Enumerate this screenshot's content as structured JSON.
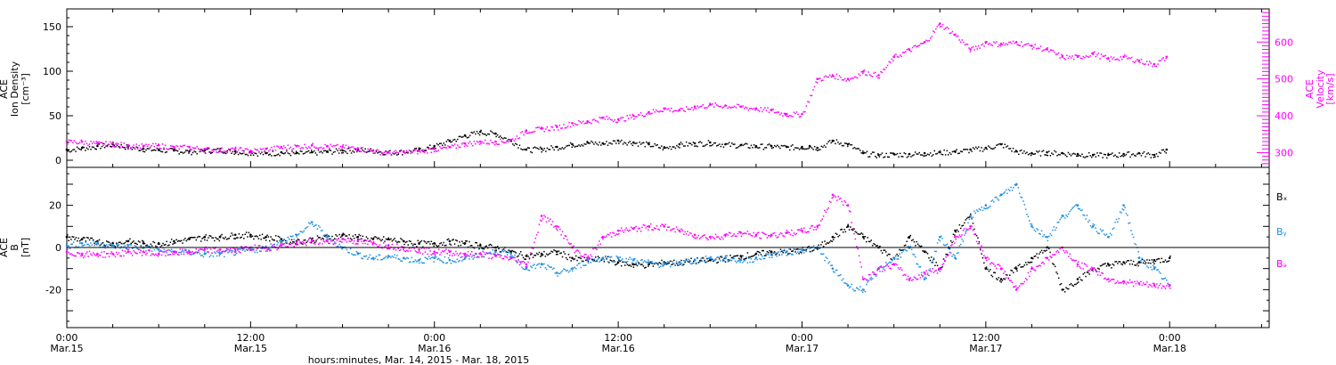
{
  "figure": {
    "xlabel": "hours:minutes, Mar. 14, 2015 - Mar. 18, 2015",
    "x_ticks": [
      {
        "h": 0,
        "time": "0:00",
        "date": "Mar.15"
      },
      {
        "h": 12,
        "time": "12:00",
        "date": "Mar.15"
      },
      {
        "h": 24,
        "time": "0:00",
        "date": "Mar.16"
      },
      {
        "h": 36,
        "time": "12:00",
        "date": "Mar.16"
      },
      {
        "h": 48,
        "time": "0:00",
        "date": "Mar.17"
      },
      {
        "h": 60,
        "time": "12:00",
        "date": "Mar.17"
      },
      {
        "h": 72,
        "time": "0:00",
        "date": "Mar.18"
      }
    ],
    "xlim_hours": [
      0,
      78.5
    ]
  },
  "colors": {
    "density": "#000000",
    "velocity": "#ff00ff",
    "bx": "#000000",
    "by": "#1e90e6",
    "bz": "#ff00ff"
  },
  "chart_data": [
    {
      "type": "scatter",
      "title": "",
      "x_unit": "hours since Mar.15 0:00",
      "left_axis": {
        "label_lines": [
          "ACE",
          "Ion Density",
          "[cm⁻³]"
        ],
        "ylim": [
          -8,
          170
        ],
        "ticks": [
          "0",
          "50",
          "100",
          "150"
        ]
      },
      "right_axis": {
        "label_lines": [
          "ACE",
          "Velocity",
          "[km/s]"
        ],
        "ylim": [
          260,
          690
        ],
        "ticks": [
          "300",
          "400",
          "500",
          "600"
        ]
      },
      "series": [
        {
          "key": "density",
          "axis": "left",
          "x": [
            0,
            1,
            2,
            3,
            4,
            5,
            6,
            7,
            8,
            9,
            10,
            11,
            12,
            13,
            14,
            15,
            16,
            17,
            18,
            19,
            20,
            21,
            22,
            23,
            24,
            25,
            26,
            27,
            28,
            29,
            30,
            31,
            32,
            33,
            34,
            35,
            36,
            37,
            38,
            39,
            40,
            41,
            42,
            43,
            44,
            45,
            46,
            47,
            48,
            48.5,
            49,
            50,
            51,
            52,
            53,
            54,
            55,
            56,
            57,
            58,
            59,
            60,
            61,
            62,
            63,
            64,
            65,
            66,
            67,
            68,
            69,
            70,
            71,
            71.8
          ],
          "values": [
            12,
            14,
            16,
            18,
            15,
            13,
            12,
            11,
            10,
            11,
            12,
            10,
            9,
            8,
            9,
            8,
            9,
            10,
            11,
            12,
            11,
            9,
            10,
            12,
            16,
            22,
            28,
            32,
            30,
            22,
            12,
            13,
            15,
            18,
            20,
            19,
            22,
            20,
            18,
            14,
            18,
            19,
            20,
            18,
            17,
            16,
            16,
            15,
            15,
            16,
            14,
            22,
            18,
            8,
            6,
            7,
            7,
            8,
            9,
            10,
            12,
            14,
            18,
            10,
            8,
            9,
            8,
            7,
            6,
            6,
            7,
            8,
            6,
            12
          ]
        },
        {
          "key": "velocity",
          "axis": "right",
          "x": [
            0,
            1,
            2,
            3,
            4,
            5,
            6,
            7,
            8,
            9,
            10,
            11,
            12,
            13,
            14,
            15,
            16,
            17,
            18,
            19,
            20,
            21,
            22,
            23,
            24,
            25,
            26,
            27,
            28,
            29,
            30,
            31,
            32,
            33,
            34,
            35,
            36,
            37,
            38,
            39,
            40,
            41,
            42,
            43,
            44,
            45,
            46,
            46.9,
            47,
            48,
            49,
            50,
            51,
            52,
            53,
            54,
            55,
            56,
            57,
            58,
            59,
            60,
            61,
            62,
            63,
            64,
            65,
            66,
            67,
            68,
            69,
            70,
            71,
            71.8
          ],
          "values": [
            330,
            330,
            325,
            325,
            320,
            318,
            320,
            315,
            315,
            310,
            308,
            310,
            305,
            310,
            315,
            318,
            320,
            318,
            316,
            312,
            305,
            300,
            302,
            305,
            310,
            315,
            325,
            330,
            330,
            335,
            360,
            365,
            370,
            380,
            385,
            395,
            390,
            400,
            410,
            420,
            415,
            425,
            430,
            428,
            425,
            420,
            415,
            405,
            405,
            405,
            500,
            510,
            500,
            520,
            510,
            560,
            580,
            600,
            650,
            620,
            580,
            600,
            595,
            600,
            590,
            580,
            560,
            560,
            570,
            555,
            560,
            550,
            540,
            560
          ]
        }
      ]
    },
    {
      "type": "scatter",
      "title": "",
      "x_unit": "hours since Mar.15 0:00",
      "left_axis": {
        "label_lines": [
          "ACE",
          "B",
          "[nT]"
        ],
        "ylim": [
          -38,
          38
        ],
        "ticks": [
          "-20",
          "0",
          "20"
        ]
      },
      "zero_line": true,
      "series": [
        {
          "name": "Bₓ",
          "key": "bx",
          "x": [
            0,
            1,
            2,
            3,
            4,
            5,
            6,
            7,
            8,
            9,
            10,
            11,
            12,
            13,
            14,
            15,
            16,
            17,
            18,
            19,
            20,
            21,
            22,
            23,
            24,
            25,
            26,
            27,
            28,
            29,
            30,
            31,
            32,
            33,
            34,
            35,
            36,
            37,
            38,
            39,
            40,
            41,
            42,
            43,
            44,
            45,
            46,
            47,
            48,
            49,
            50,
            51,
            52,
            53,
            54,
            55,
            56,
            57,
            58,
            59,
            60,
            61,
            62,
            63,
            64,
            65,
            66,
            67,
            68,
            69,
            70,
            71,
            72
          ],
          "values": [
            5,
            4,
            3,
            2,
            3,
            2,
            2,
            3,
            4,
            5,
            5,
            6,
            6,
            5,
            4,
            3,
            4,
            5,
            6,
            5,
            4,
            4,
            3,
            2,
            2,
            3,
            2,
            1,
            0,
            -2,
            -4,
            -3,
            -2,
            -5,
            -6,
            -5,
            -7,
            -8,
            -8,
            -7,
            -7,
            -6,
            -6,
            -5,
            -4,
            -3,
            -2,
            -2,
            -1,
            0,
            5,
            10,
            5,
            0,
            -5,
            5,
            -2,
            -10,
            8,
            15,
            -10,
            -15,
            -10,
            -5,
            0,
            -20,
            -15,
            -10,
            -8,
            -7,
            -7,
            -6,
            -5
          ]
        },
        {
          "name": "Bᵧ",
          "key": "by",
          "x": [
            0,
            1,
            2,
            3,
            4,
            5,
            6,
            7,
            8,
            9,
            10,
            11,
            12,
            13,
            14,
            15,
            16,
            17,
            18,
            19,
            20,
            21,
            22,
            23,
            24,
            25,
            26,
            27,
            28,
            29,
            30,
            31,
            32,
            33,
            34,
            35,
            36,
            37,
            38,
            39,
            40,
            41,
            42,
            43,
            44,
            45,
            46,
            47,
            48,
            49,
            50,
            51,
            52,
            53,
            54,
            55,
            56,
            57,
            58,
            59,
            60,
            61,
            62,
            63,
            64,
            65,
            66,
            67,
            68,
            69,
            70,
            71,
            72
          ],
          "values": [
            1,
            2,
            2,
            1,
            1,
            0,
            -1,
            -2,
            -2,
            -3,
            -3,
            -2,
            -1,
            0,
            3,
            6,
            12,
            5,
            0,
            -3,
            -5,
            -4,
            -5,
            -6,
            -5,
            -6,
            -5,
            -3,
            -2,
            -3,
            -10,
            -8,
            -12,
            -10,
            -6,
            -5,
            -5,
            -6,
            -7,
            -8,
            -7,
            -6,
            -5,
            -5,
            -6,
            -5,
            -3,
            -2,
            -1,
            0,
            -10,
            -18,
            -20,
            -10,
            -5,
            0,
            -15,
            5,
            -5,
            15,
            20,
            25,
            30,
            10,
            5,
            15,
            20,
            10,
            5,
            20,
            -5,
            -10,
            -18
          ]
        },
        {
          "name": "Bₔ",
          "key": "bz",
          "x": [
            0,
            1,
            2,
            3,
            4,
            5,
            6,
            7,
            8,
            9,
            10,
            11,
            12,
            13,
            14,
            15,
            16,
            17,
            18,
            19,
            20,
            21,
            22,
            23,
            24,
            25,
            26,
            27,
            28,
            29,
            30,
            31,
            32,
            33,
            34,
            35,
            36,
            37,
            38,
            39,
            40,
            41,
            42,
            43,
            44,
            45,
            46,
            47,
            48,
            49,
            50,
            51,
            52,
            53,
            54,
            55,
            56,
            57,
            58,
            59,
            60,
            61,
            62,
            63,
            64,
            65,
            66,
            67,
            68,
            69,
            70,
            71,
            72
          ],
          "values": [
            -2,
            -3,
            -3,
            -3,
            -2,
            -2,
            -3,
            -2,
            -2,
            -1,
            -1,
            -1,
            0,
            0,
            1,
            2,
            3,
            3,
            4,
            3,
            2,
            1,
            0,
            -1,
            -2,
            -2,
            -3,
            -3,
            -4,
            -5,
            -8,
            15,
            10,
            0,
            -5,
            5,
            8,
            9,
            10,
            10,
            8,
            6,
            5,
            6,
            7,
            6,
            6,
            7,
            8,
            10,
            25,
            20,
            -15,
            -10,
            -8,
            -15,
            -12,
            -10,
            5,
            10,
            -5,
            -10,
            -20,
            -10,
            -5,
            0,
            -8,
            -10,
            -15,
            -16,
            -17,
            -18,
            -18
          ]
        }
      ]
    }
  ]
}
